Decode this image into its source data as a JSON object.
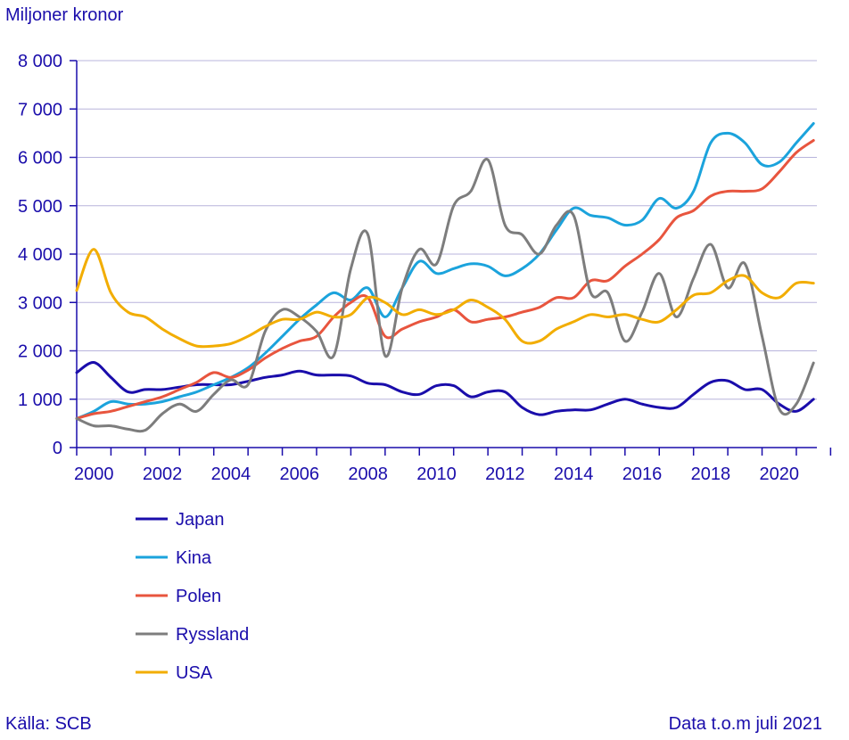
{
  "ylabel": "Miljoner kronor",
  "source": "Källa: SCB",
  "note": "Data t.o.m juli 2021",
  "chart_data": {
    "type": "line",
    "ylabel": "Miljoner kronor",
    "xlim": [
      2000,
      2021.6
    ],
    "ylim": [
      0,
      8000
    ],
    "x_ticks": [
      "2000",
      "2002",
      "2004",
      "2006",
      "2008",
      "2010",
      "2012",
      "2014",
      "2016",
      "2018",
      "2020"
    ],
    "y_ticks": [
      "0",
      "1 000",
      "2 000",
      "3 000",
      "4 000",
      "5 000",
      "6 000",
      "7 000",
      "8 000"
    ],
    "grid": true,
    "legend_position": "bottom-left",
    "series": [
      {
        "name": "Japan",
        "color": "#1a0dab",
        "x": [
          2000,
          2000.5,
          2001,
          2001.5,
          2002,
          2002.5,
          2003,
          2003.5,
          2004,
          2004.5,
          2005,
          2005.5,
          2006,
          2006.5,
          2007,
          2007.5,
          2008,
          2008.5,
          2009,
          2009.5,
          2010,
          2010.5,
          2011,
          2011.5,
          2012,
          2012.5,
          2013,
          2013.5,
          2014,
          2014.5,
          2015,
          2015.5,
          2016,
          2016.5,
          2017,
          2017.5,
          2018,
          2018.5,
          2019,
          2019.5,
          2020,
          2020.5,
          2021,
          2021.5
        ],
        "values": [
          1550,
          1760,
          1450,
          1150,
          1200,
          1200,
          1250,
          1300,
          1300,
          1300,
          1370,
          1450,
          1500,
          1580,
          1500,
          1500,
          1480,
          1330,
          1300,
          1150,
          1100,
          1280,
          1280,
          1050,
          1150,
          1150,
          830,
          680,
          750,
          780,
          780,
          900,
          1000,
          900,
          830,
          830,
          1100,
          1350,
          1380,
          1200,
          1200,
          900,
          750,
          1000
        ]
      },
      {
        "name": "Kina",
        "color": "#1ba3dc",
        "x": [
          2000,
          2000.5,
          2001,
          2001.5,
          2002,
          2002.5,
          2003,
          2003.5,
          2004,
          2004.5,
          2005,
          2005.5,
          2006,
          2006.5,
          2007,
          2007.5,
          2008,
          2008.5,
          2009,
          2009.5,
          2010,
          2010.5,
          2011,
          2011.5,
          2012,
          2012.5,
          2013,
          2013.5,
          2014,
          2014.5,
          2015,
          2015.5,
          2016,
          2016.5,
          2017,
          2017.5,
          2018,
          2018.5,
          2019,
          2019.5,
          2020,
          2020.5,
          2021,
          2021.5
        ],
        "values": [
          600,
          750,
          950,
          900,
          900,
          950,
          1050,
          1150,
          1300,
          1450,
          1650,
          1950,
          2300,
          2650,
          2950,
          3200,
          3050,
          3300,
          2700,
          3300,
          3850,
          3600,
          3700,
          3800,
          3750,
          3550,
          3700,
          4000,
          4500,
          4950,
          4800,
          4750,
          4600,
          4700,
          5150,
          4950,
          5300,
          6300,
          6500,
          6300,
          5850,
          5900,
          6300,
          6700
        ]
      },
      {
        "name": "Polen",
        "color": "#e8553e",
        "x": [
          2000,
          2000.5,
          2001,
          2001.5,
          2002,
          2002.5,
          2003,
          2003.5,
          2004,
          2004.5,
          2005,
          2005.5,
          2006,
          2006.5,
          2007,
          2007.5,
          2008,
          2008.5,
          2009,
          2009.5,
          2010,
          2010.5,
          2011,
          2011.5,
          2012,
          2012.5,
          2013,
          2013.5,
          2014,
          2014.5,
          2015,
          2015.5,
          2016,
          2016.5,
          2017,
          2017.5,
          2018,
          2018.5,
          2019,
          2019.5,
          2020,
          2020.5,
          2021,
          2021.5
        ],
        "values": [
          600,
          700,
          750,
          850,
          950,
          1050,
          1200,
          1350,
          1550,
          1450,
          1600,
          1850,
          2050,
          2200,
          2300,
          2700,
          3000,
          3100,
          2300,
          2450,
          2600,
          2700,
          2850,
          2600,
          2650,
          2700,
          2800,
          2900,
          3100,
          3100,
          3450,
          3450,
          3750,
          4000,
          4300,
          4750,
          4900,
          5200,
          5300,
          5300,
          5350,
          5700,
          6100,
          6350
        ]
      },
      {
        "name": "Ryssland",
        "color": "#7d7d7d",
        "x": [
          2000,
          2000.5,
          2001,
          2001.5,
          2002,
          2002.5,
          2003,
          2003.5,
          2004,
          2004.5,
          2005,
          2005.5,
          2006,
          2006.5,
          2007,
          2007.5,
          2008,
          2008.5,
          2009,
          2009.5,
          2010,
          2010.5,
          2011,
          2011.5,
          2012,
          2012.5,
          2013,
          2013.5,
          2014,
          2014.5,
          2015,
          2015.5,
          2016,
          2016.5,
          2017,
          2017.5,
          2018,
          2018.5,
          2019,
          2019.5,
          2020,
          2020.5,
          2021,
          2021.5
        ],
        "values": [
          600,
          450,
          450,
          380,
          360,
          700,
          900,
          750,
          1100,
          1400,
          1300,
          2400,
          2850,
          2700,
          2400,
          1900,
          3700,
          4400,
          1900,
          3300,
          4100,
          3800,
          5000,
          5300,
          5950,
          4600,
          4400,
          4000,
          4600,
          4800,
          3200,
          3200,
          2200,
          2800,
          3600,
          2700,
          3500,
          4200,
          3300,
          3800,
          2300,
          800,
          900,
          1750
        ]
      },
      {
        "name": "USA",
        "color": "#f2ad00",
        "x": [
          2000,
          2000.5,
          2001,
          2001.5,
          2002,
          2002.5,
          2003,
          2003.5,
          2004,
          2004.5,
          2005,
          2005.5,
          2006,
          2006.5,
          2007,
          2007.5,
          2008,
          2008.5,
          2009,
          2009.5,
          2010,
          2010.5,
          2011,
          2011.5,
          2012,
          2012.5,
          2013,
          2013.5,
          2014,
          2014.5,
          2015,
          2015.5,
          2016,
          2016.5,
          2017,
          2017.5,
          2018,
          2018.5,
          2019,
          2019.5,
          2020,
          2020.5,
          2021,
          2021.5
        ],
        "values": [
          3250,
          4100,
          3200,
          2800,
          2700,
          2450,
          2250,
          2100,
          2100,
          2150,
          2300,
          2500,
          2650,
          2650,
          2800,
          2700,
          2750,
          3100,
          3000,
          2750,
          2850,
          2750,
          2850,
          3050,
          2900,
          2650,
          2200,
          2200,
          2450,
          2600,
          2750,
          2700,
          2750,
          2650,
          2600,
          2850,
          3150,
          3200,
          3450,
          3550,
          3200,
          3100,
          3400,
          3400
        ]
      }
    ]
  }
}
